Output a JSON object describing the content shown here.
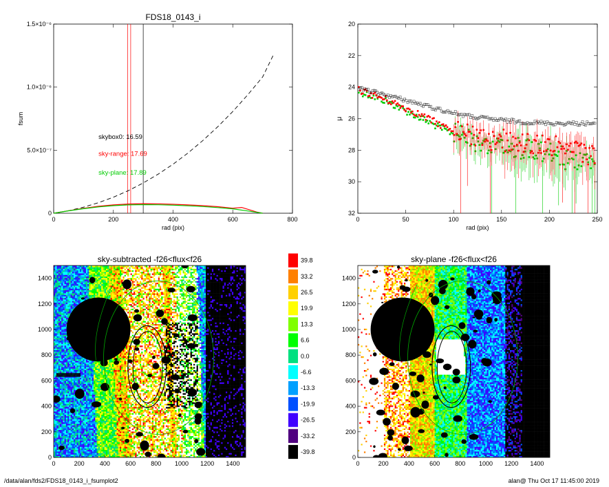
{
  "footer": {
    "path": "/data/alan/fds2/FDS18_0143_i_fsumplot2",
    "stamp": "alan@  Thu Oct 17 11:45:00 2019"
  },
  "chart_data": [
    {
      "id": "fsum",
      "type": "line",
      "title": "FDS18_0143_i",
      "xlabel": "rad (pix)",
      "ylabel": "fsum",
      "xlim": [
        0,
        800
      ],
      "ylim": [
        0,
        1.5e-06
      ],
      "xticks": [
        0,
        200,
        400,
        600,
        800
      ],
      "yticks": [
        {
          "value": 0,
          "label": "0"
        },
        {
          "value": 5e-07,
          "label": "5.0×10⁻⁷"
        },
        {
          "value": 1e-06,
          "label": "1.0×10⁻⁶"
        },
        {
          "value": 1.5e-06,
          "label": "1.5×10⁻⁶"
        }
      ],
      "annotations": [
        {
          "text": "skybox0: 16.59",
          "color": "#000000",
          "x": 150,
          "y": 5.9e-07
        },
        {
          "text": "sky-range: 17.69",
          "color": "#ff0000",
          "x": 150,
          "y": 4.55e-07
        },
        {
          "text": "sky-plane: 17.89",
          "color": "#00cc00",
          "x": 150,
          "y": 3.05e-07
        }
      ],
      "vlines": [
        {
          "x": 248,
          "color": "#ff0000"
        },
        {
          "x": 258,
          "color": "#ff0000"
        },
        {
          "x": 300,
          "color": "#000000"
        }
      ],
      "series": [
        {
          "color": "#000000",
          "dash": true,
          "x": [
            0,
            50,
            100,
            150,
            200,
            250,
            300,
            350,
            400,
            450,
            500,
            550,
            600,
            650,
            700,
            735
          ],
          "y": [
            0,
            2e-08,
            4.8e-08,
            8.4e-08,
            1.27e-07,
            1.79e-07,
            2.4e-07,
            3.1e-07,
            3.89e-07,
            4.78e-07,
            5.77e-07,
            6.87e-07,
            8.07e-07,
            9.38e-07,
            1.08e-06,
            1.25e-06
          ]
        },
        {
          "color": "#ff0000",
          "dash": false,
          "x": [
            0,
            50,
            100,
            150,
            200,
            250,
            300,
            350,
            400,
            450,
            500,
            550,
            600,
            630,
            680,
            700
          ],
          "y": [
            0,
            2e-08,
            3.9e-08,
            5.5e-08,
            6.6e-08,
            7.3e-08,
            7.6e-08,
            7.5e-08,
            7.1e-08,
            6.6e-08,
            6e-08,
            5.2e-08,
            4e-08,
            4.6e-08,
            1e-08,
            0
          ]
        },
        {
          "color": "#00cc00",
          "dash": false,
          "x": [
            0,
            50,
            100,
            150,
            200,
            250,
            300,
            350,
            400,
            450,
            500,
            550,
            600,
            650,
            700
          ],
          "y": [
            0,
            1.9e-08,
            3.6e-08,
            5e-08,
            6e-08,
            6.6e-08,
            6.8e-08,
            6.7e-08,
            6.4e-08,
            5.9e-08,
            5.3e-08,
            4.5e-08,
            3.5e-08,
            1.8e-08,
            0
          ]
        }
      ]
    },
    {
      "id": "profile",
      "type": "scatter",
      "title": "",
      "xlabel": "rad (pix)",
      "ylabel": "μ",
      "xlim": [
        0,
        250
      ],
      "ylim": [
        32,
        20
      ],
      "xticks": [
        0,
        50,
        100,
        150,
        200,
        250
      ],
      "yticks": [
        20,
        22,
        24,
        26,
        28,
        30,
        32
      ],
      "series": [
        {
          "color": "#000000",
          "trend": [
            [
              2,
              24.1
            ],
            [
              30,
              24.5
            ],
            [
              60,
              25.0
            ],
            [
              90,
              25.5
            ],
            [
              120,
              25.9
            ],
            [
              150,
              26.1
            ],
            [
              180,
              26.25
            ],
            [
              210,
              26.3
            ],
            [
              248,
              26.3
            ]
          ]
        },
        {
          "color": "#ff0000",
          "trend": [
            [
              2,
              24.2
            ],
            [
              30,
              24.8
            ],
            [
              60,
              25.6
            ],
            [
              90,
              26.5
            ],
            [
              110,
              27.0
            ],
            [
              140,
              27.3
            ],
            [
              170,
              27.5
            ],
            [
              200,
              27.7
            ],
            [
              220,
              28.0
            ],
            [
              248,
              28.5
            ]
          ]
        },
        {
          "color": "#00cc00",
          "trend": [
            [
              2,
              24.3
            ],
            [
              30,
              24.9
            ],
            [
              60,
              25.8
            ],
            [
              90,
              26.7
            ],
            [
              110,
              27.2
            ],
            [
              140,
              27.6
            ],
            [
              170,
              27.9
            ],
            [
              200,
              28.2
            ],
            [
              220,
              28.6
            ],
            [
              248,
              29.0
            ]
          ]
        }
      ]
    },
    {
      "id": "sky-subtracted",
      "type": "heatmap",
      "title": "sky-subtracted -f26<flux<f26",
      "xlim": [
        0,
        1500
      ],
      "ylim": [
        0,
        1500
      ],
      "xticks": [
        0,
        200,
        400,
        600,
        800,
        1000,
        1200,
        1400
      ],
      "yticks": [
        0,
        200,
        400,
        600,
        800,
        1000,
        1200,
        1400
      ]
    },
    {
      "id": "sky-plane",
      "type": "heatmap",
      "title": "sky-plane -f26<flux<f26",
      "xlim": [
        0,
        1500
      ],
      "ylim": [
        0,
        1500
      ],
      "xticks": [
        0,
        200,
        400,
        600,
        800,
        1000,
        1200,
        1400
      ],
      "yticks": [
        0,
        200,
        400,
        600,
        800,
        1000,
        1200,
        1400
      ]
    },
    {
      "id": "colorbar",
      "type": "heatmap",
      "levels": [
        {
          "label": "39.8",
          "color": "#ff0000"
        },
        {
          "label": "33.2",
          "color": "#ff8000"
        },
        {
          "label": "26.5",
          "color": "#ffd000"
        },
        {
          "label": "19.9",
          "color": "#ffff00"
        },
        {
          "label": "13.3",
          "color": "#80ff00"
        },
        {
          "label": "6.6",
          "color": "#00ff00"
        },
        {
          "label": "0.0",
          "color": "#00e080"
        },
        {
          "label": "-6.6",
          "color": "#00ffff"
        },
        {
          "label": "-13.3",
          "color": "#00a0ff"
        },
        {
          "label": "-19.9",
          "color": "#0050ff"
        },
        {
          "label": "-26.5",
          "color": "#4000ff"
        },
        {
          "label": "-33.2",
          "color": "#500080"
        },
        {
          "label": "-39.8",
          "color": "#000000"
        }
      ]
    }
  ]
}
